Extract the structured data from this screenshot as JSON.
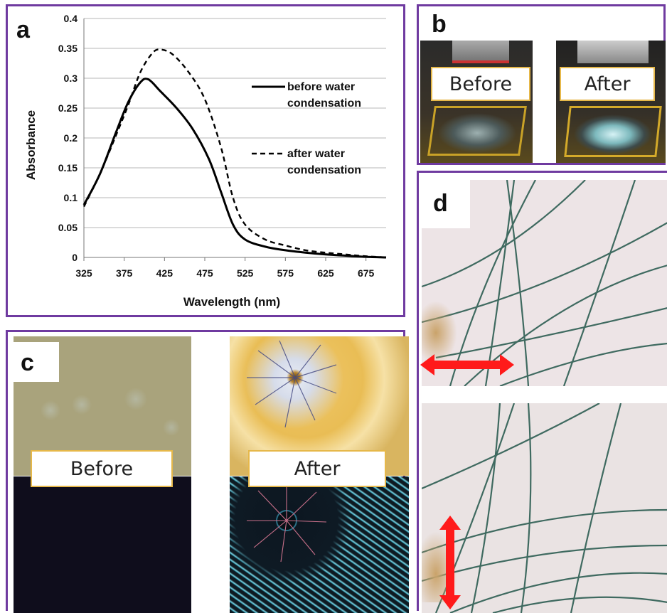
{
  "panels": {
    "a": {
      "letter": "a"
    },
    "b": {
      "letter": "b",
      "before_label": "Before",
      "after_label": "After"
    },
    "c": {
      "letter": "c",
      "before_label": "Before",
      "after_label": "After"
    },
    "d": {
      "letter": "d"
    }
  },
  "colors": {
    "frame": "#6f3aa0",
    "label_border": "#e6b84a",
    "arrow": "#ff1a1a"
  },
  "chart_data": {
    "type": "line",
    "title": "",
    "xlabel": "Wavelength (nm)",
    "ylabel": "Absorbance",
    "xlim": [
      325,
      700
    ],
    "ylim": [
      0,
      0.4
    ],
    "x_ticks": [
      325,
      375,
      425,
      475,
      525,
      575,
      625,
      675
    ],
    "y_ticks": [
      0,
      0.05,
      0.1,
      0.15,
      0.2,
      0.25,
      0.3,
      0.35,
      0.4
    ],
    "y_tick_labels": [
      "0",
      "0.05",
      "0.1",
      "0.15",
      "0.2",
      "0.25",
      "0.3",
      "0.35",
      "0.4"
    ],
    "grid": "horizontal",
    "legend_position": "right",
    "series": [
      {
        "name": "before water condensation",
        "legend_lines": [
          "before water",
          "condensation"
        ],
        "style": "solid",
        "x": [
          325,
          345,
          365,
          380,
          395,
          405,
          420,
          440,
          460,
          480,
          495,
          510,
          525,
          550,
          575,
          600,
          625,
          650,
          675,
          700
        ],
        "y": [
          0.088,
          0.14,
          0.21,
          0.26,
          0.293,
          0.298,
          0.278,
          0.25,
          0.215,
          0.165,
          0.11,
          0.055,
          0.03,
          0.018,
          0.012,
          0.008,
          0.005,
          0.003,
          0.001,
          0.0
        ]
      },
      {
        "name": "after water condensation",
        "legend_lines": [
          "after water",
          "condensation"
        ],
        "style": "dashed",
        "x": [
          325,
          345,
          365,
          380,
          395,
          410,
          420,
          435,
          455,
          475,
          495,
          510,
          525,
          550,
          575,
          600,
          625,
          650,
          675,
          700
        ],
        "y": [
          0.085,
          0.14,
          0.205,
          0.255,
          0.31,
          0.342,
          0.348,
          0.34,
          0.31,
          0.265,
          0.185,
          0.1,
          0.055,
          0.03,
          0.02,
          0.012,
          0.008,
          0.005,
          0.002,
          0.0
        ]
      }
    ]
  }
}
